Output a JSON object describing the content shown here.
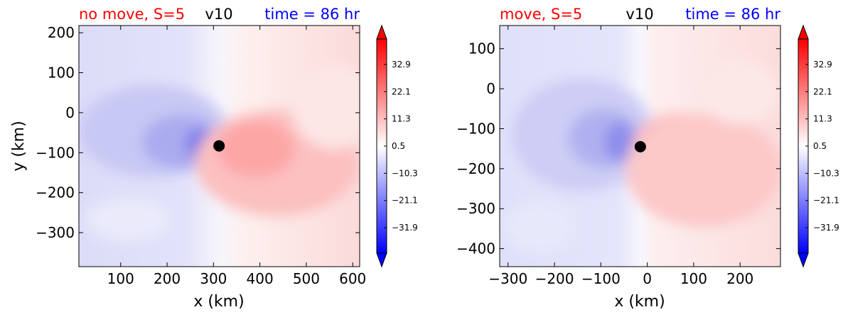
{
  "chart_data": [
    {
      "type": "heatmap",
      "title_left": "no move, S=5",
      "title_center": "v10",
      "title_right": "time = 86 hr",
      "xlabel": "x (km)",
      "ylabel": "y (km)",
      "xlim": [
        10,
        615
      ],
      "ylim": [
        -385,
        218
      ],
      "xticks": [
        100,
        200,
        300,
        400,
        500,
        600
      ],
      "xtick_labels": [
        "100",
        "200",
        "300",
        "400",
        "500",
        "600"
      ],
      "yticks": [
        200,
        100,
        0,
        -100,
        -200,
        -300
      ],
      "ytick_labels": [
        "200",
        "100",
        "0",
        "−100",
        "−200",
        "−300"
      ],
      "center": {
        "x": 312,
        "y": -83
      },
      "marker_color": "#000000"
    },
    {
      "type": "heatmap",
      "title_left": "move, S=5",
      "title_center": "v10",
      "title_right": "time = 86 hr",
      "xlabel": "x (km)",
      "ylabel": "",
      "xlim": [
        -318,
        287
      ],
      "ylim": [
        -445,
        158
      ],
      "xticks": [
        -300,
        -200,
        -100,
        0,
        100,
        200
      ],
      "xtick_labels": [
        "−300",
        "−200",
        "−100",
        "0",
        "100",
        "200"
      ],
      "yticks": [
        100,
        0,
        -100,
        -200,
        -300,
        -400
      ],
      "ytick_labels": [
        "100",
        "0",
        "−100",
        "−200",
        "−300",
        "−400"
      ],
      "center": {
        "x": -15,
        "y": -145
      },
      "marker_color": "#000000"
    }
  ],
  "colorbar": {
    "range": [
      -42,
      43
    ],
    "ticks": [
      32.9,
      22.1,
      11.3,
      0.5,
      -10.3,
      -21.1,
      -31.9
    ],
    "tick_labels": [
      "32.9",
      "22.1",
      "11.3",
      "0.5",
      "−10.3",
      "−21.1",
      "−31.9"
    ],
    "colors": {
      "negative": "#0000ff",
      "zero": "#ffffff",
      "positive": "#ff0000"
    }
  },
  "colors": {
    "title_left": "#ff0000",
    "title_center": "#000000",
    "title_right": "#0000ff"
  }
}
